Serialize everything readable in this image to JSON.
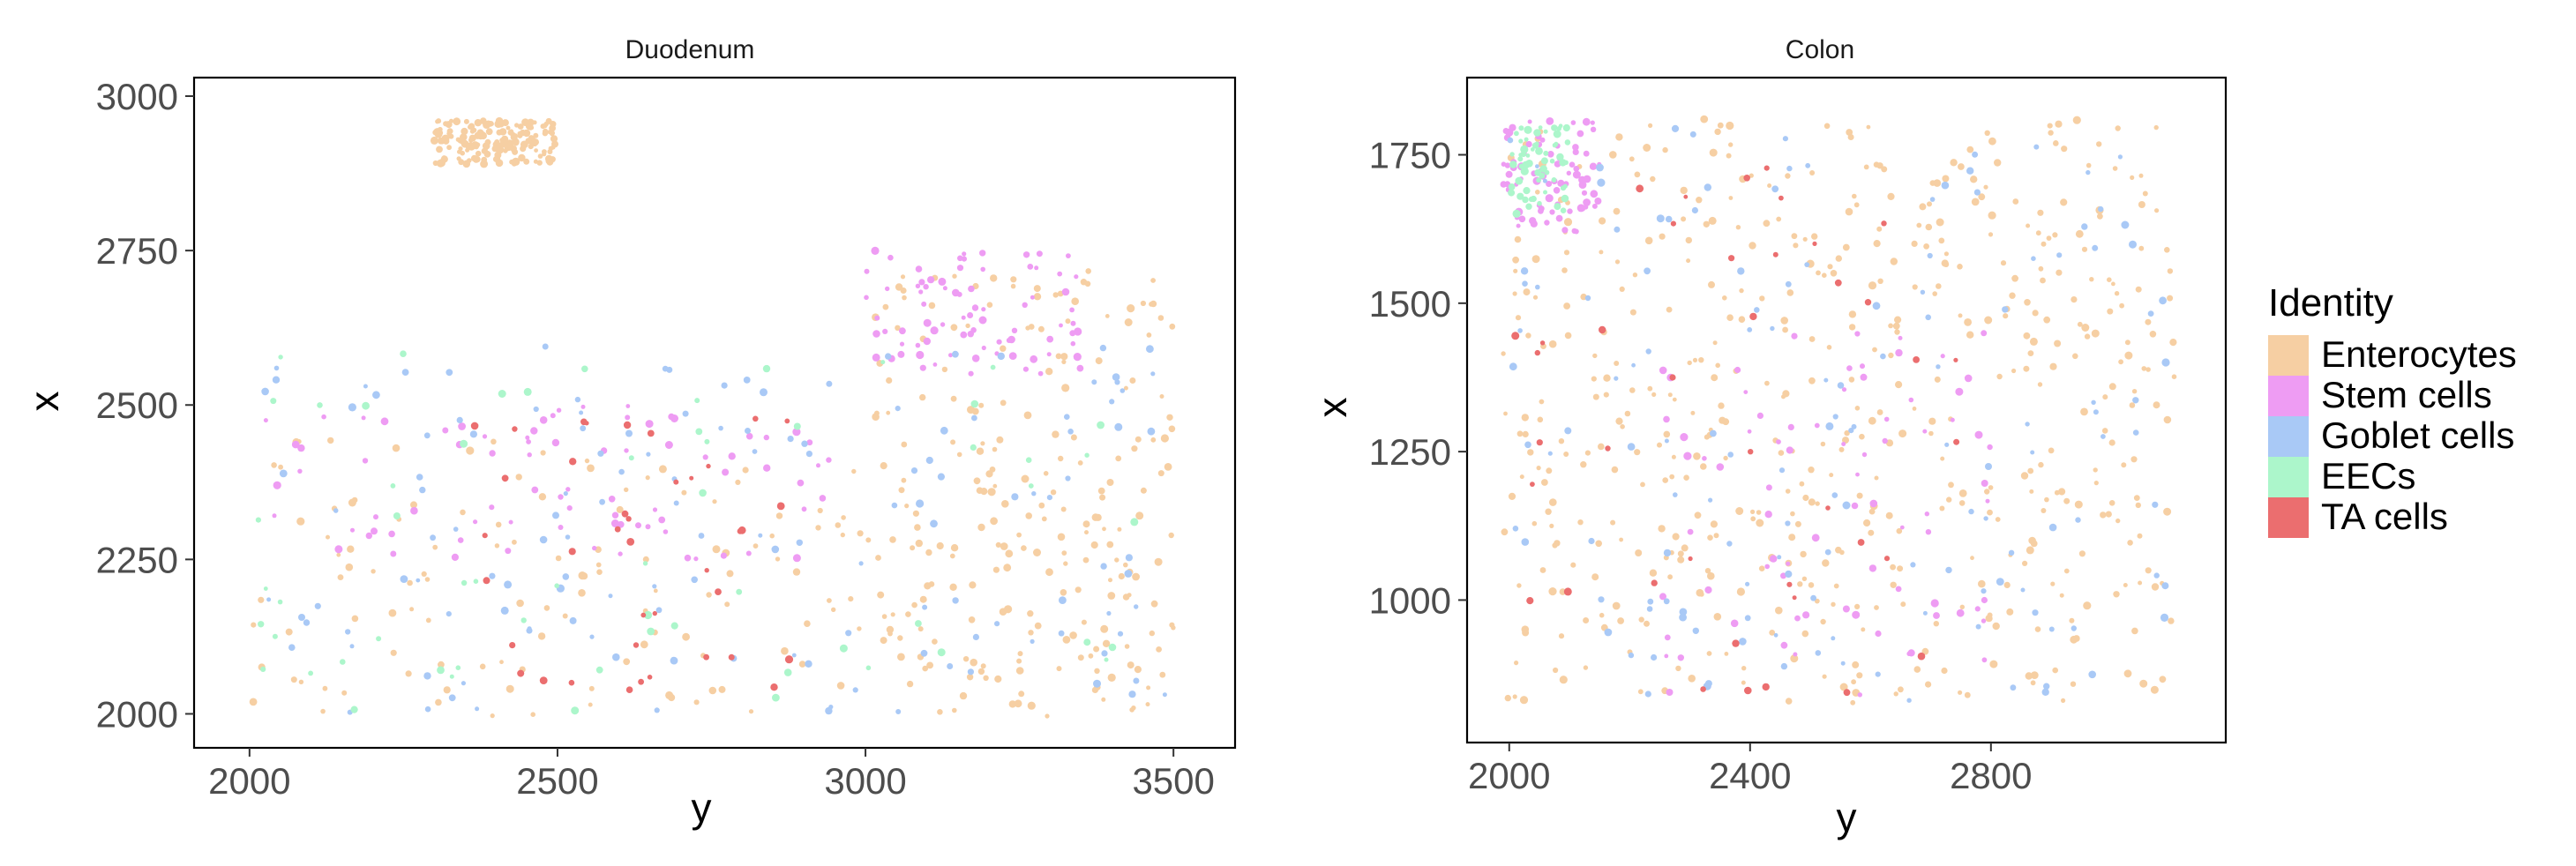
{
  "chart_data": [
    {
      "type": "scatter",
      "title": "Duodenum",
      "xlabel": "y",
      "ylabel": "x",
      "xlim": [
        1910,
        3600
      ],
      "ylim": [
        1945,
        3030
      ],
      "xticks": [
        2000,
        2500,
        3000,
        3500
      ],
      "xtick_labels": [
        "2000",
        "2500",
        "3000",
        "3500"
      ],
      "yticks": [
        2000,
        2250,
        2500,
        2750,
        3000
      ],
      "ytick_labels": [
        "2000",
        "2250",
        "2500",
        "2750",
        "3000"
      ],
      "grid": false,
      "series": [
        {
          "name": "Enterocytes",
          "region_values": [
            {
              "y_range": [
                2000,
                3500
              ],
              "x_range": [
                1995,
                2450
              ]
            },
            {
              "y_range": [
                3000,
                3500
              ],
              "x_range": [
                2000,
                2720
              ]
            },
            {
              "y_range": [
                2300,
                2500
              ],
              "x_range": [
                2890,
                2960
              ]
            }
          ]
        },
        {
          "name": "Stem cells",
          "region_values": [
            {
              "y_range": [
                2000,
                3000
              ],
              "x_range": [
                2250,
                2500
              ]
            },
            {
              "y_range": [
                3000,
                3350
              ],
              "x_range": [
                2550,
                2750
              ]
            }
          ]
        },
        {
          "name": "Goblet cells",
          "region_values": [
            {
              "y_range": [
                2000,
                3500
              ],
              "x_range": [
                2000,
                2600
              ]
            }
          ]
        },
        {
          "name": "EECs",
          "region_values": [
            {
              "y_range": [
                2000,
                3450
              ],
              "x_range": [
                2000,
                2600
              ]
            }
          ]
        },
        {
          "name": "TA cells",
          "region_values": [
            {
              "y_range": [
                2350,
                2900
              ],
              "x_range": [
                2030,
                2480
              ]
            }
          ]
        }
      ]
    },
    {
      "type": "scatter",
      "title": "Colon",
      "xlabel": "y",
      "ylabel": "x",
      "xlim": [
        1930,
        3190
      ],
      "ylim": [
        760,
        1880
      ],
      "xticks": [
        2000,
        2400,
        2800
      ],
      "xtick_labels": [
        "2000",
        "2400",
        "2800"
      ],
      "yticks": [
        1000,
        1250,
        1500,
        1750
      ],
      "ytick_labels": [
        "1000",
        "1250",
        "1500",
        "1750"
      ],
      "grid": false,
      "series": [
        {
          "name": "Enterocytes",
          "region_values": [
            {
              "y_range": [
                1990,
                3110
              ],
              "x_range": [
                820,
                1810
              ]
            }
          ]
        },
        {
          "name": "Stem cells",
          "region_values": [
            {
              "y_range": [
                1990,
                2150
              ],
              "x_range": [
                1620,
                1810
              ]
            },
            {
              "y_range": [
                2250,
                2800
              ],
              "x_range": [
                830,
                1450
              ]
            }
          ]
        },
        {
          "name": "Goblet cells",
          "region_values": [
            {
              "y_range": [
                2000,
                3100
              ],
              "x_range": [
                830,
                1800
              ]
            }
          ]
        },
        {
          "name": "EECs",
          "region_values": [
            {
              "y_range": [
                2000,
                2100
              ],
              "x_range": [
                1650,
                1800
              ]
            }
          ]
        },
        {
          "name": "TA cells",
          "region_values": [
            {
              "y_range": [
                2000,
                2750
              ],
              "x_range": [
                830,
                1730
              ]
            }
          ]
        }
      ]
    }
  ],
  "legend": {
    "title": "Identity",
    "placement": "right",
    "items": [
      {
        "label": "Enterocytes",
        "color": "#F6CFA3"
      },
      {
        "label": "Stem cells",
        "color": "#EE9CF3"
      },
      {
        "label": "Goblet cells",
        "color": "#A9C9F6"
      },
      {
        "label": "EECs",
        "color": "#ACF6CB"
      },
      {
        "label": "TA cells",
        "color": "#EB6E6F"
      }
    ]
  }
}
